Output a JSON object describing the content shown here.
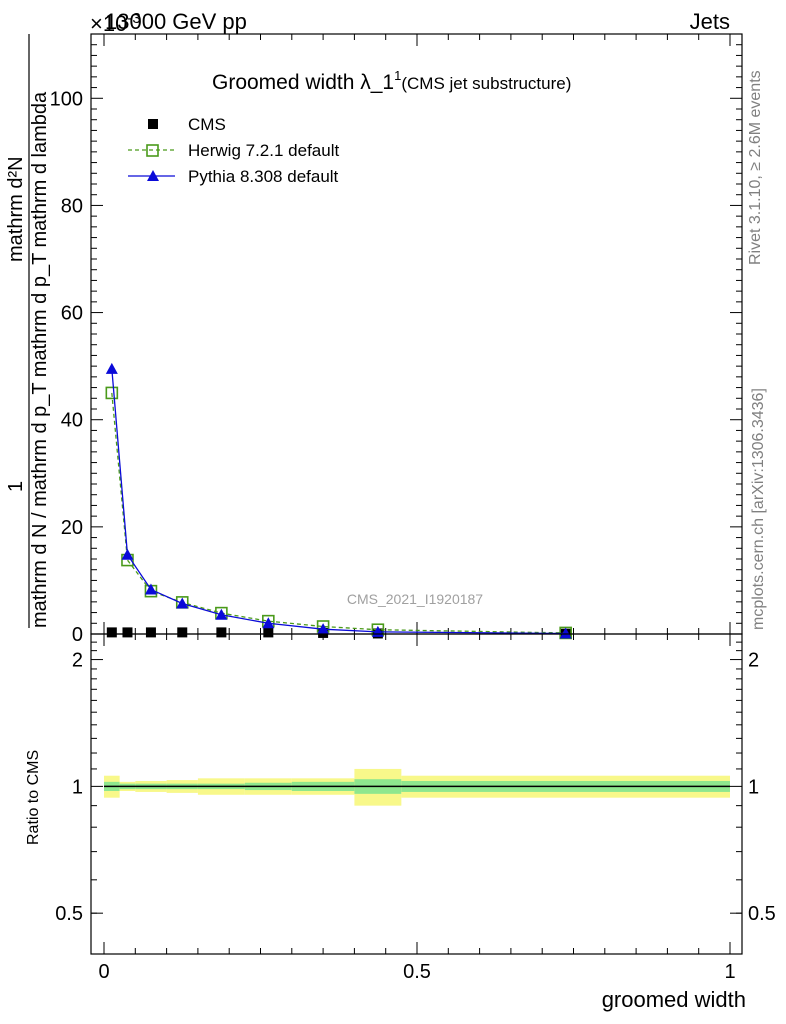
{
  "header": {
    "exponent_label": "×10",
    "exponent_sup": "-3",
    "process": "13000 GeV pp",
    "category": "Jets"
  },
  "side_labels": {
    "rivet": "Rivet 3.1.10, ≥ 2.6M events",
    "mcplots": "mcplots.cern.ch [arXiv:1306.3436]"
  },
  "chart_data": [
    {
      "type": "line",
      "title": "Groomed width",
      "title_symbol": "λ_1",
      "title_sup": "1",
      "subtitle": "(CMS jet substructure)",
      "watermark": "CMS_2021_I1920187",
      "ylabel_numerator": "mathrm d²N",
      "ylabel_factor": "1",
      "ylabel_denominator": "mathrm d N / mathrm d p_T mathrm d p_T mathrm d lambda",
      "xlim": [
        0,
        1
      ],
      "ylim": [
        0,
        112
      ],
      "yscale_factor": "×10^-3",
      "xticks": [
        "0",
        "0.5",
        "1"
      ],
      "yticks": [
        "0",
        "20",
        "40",
        "60",
        "80",
        "100"
      ],
      "x": [
        0.0125,
        0.0375,
        0.075,
        0.125,
        0.1875,
        0.2625,
        0.35,
        0.4375,
        0.7375
      ],
      "bin_edges": [
        0.0,
        0.025,
        0.05,
        0.1,
        0.15,
        0.225,
        0.3,
        0.4,
        0.475,
        1.0
      ],
      "series": [
        {
          "name": "CMS",
          "color": "#000000",
          "marker": "square-filled",
          "values": [
            0.3,
            0.3,
            0.3,
            0.3,
            0.3,
            0.3,
            0.2,
            0.1,
            0.05
          ]
        },
        {
          "name": "Herwig 7.2.1 default",
          "color": "#4a9a1a",
          "marker": "square-open",
          "line": "dashed",
          "values": [
            45.0,
            13.8,
            8.0,
            5.9,
            3.9,
            2.4,
            1.4,
            0.8,
            0.2
          ]
        },
        {
          "name": "Pythia 8.308 default",
          "color": "#0a0ad8",
          "marker": "triangle-filled",
          "line": "solid",
          "values": [
            49.5,
            14.8,
            8.3,
            5.7,
            3.6,
            2.0,
            0.9,
            0.4,
            0.1
          ]
        }
      ],
      "legend_position": "top-left"
    },
    {
      "type": "area",
      "ylabel": "Ratio to CMS",
      "xlabel": "groomed width",
      "xlim": [
        0,
        1
      ],
      "ylim": [
        0.4,
        2.3
      ],
      "yscale": "log",
      "xticks": [
        "0",
        "0.5",
        "1"
      ],
      "yticks": [
        "0.5",
        "1",
        "2"
      ],
      "reference_line": 1,
      "bands": {
        "bin_edges": [
          0.0,
          0.025,
          0.05,
          0.1,
          0.15,
          0.225,
          0.3,
          0.4,
          0.475,
          1.0
        ],
        "stat_low": [
          0.975,
          0.985,
          0.985,
          0.985,
          0.985,
          0.98,
          0.975,
          0.96,
          0.97
        ],
        "stat_high": [
          1.025,
          1.015,
          1.015,
          1.015,
          1.015,
          1.02,
          1.025,
          1.04,
          1.03
        ],
        "total_low": [
          0.94,
          0.975,
          0.97,
          0.965,
          0.955,
          0.955,
          0.955,
          0.9,
          0.94
        ],
        "total_high": [
          1.06,
          1.025,
          1.03,
          1.035,
          1.045,
          1.045,
          1.045,
          1.1,
          1.06
        ],
        "stat_color": "#8ee78e",
        "total_color": "#f8f88a"
      }
    }
  ]
}
